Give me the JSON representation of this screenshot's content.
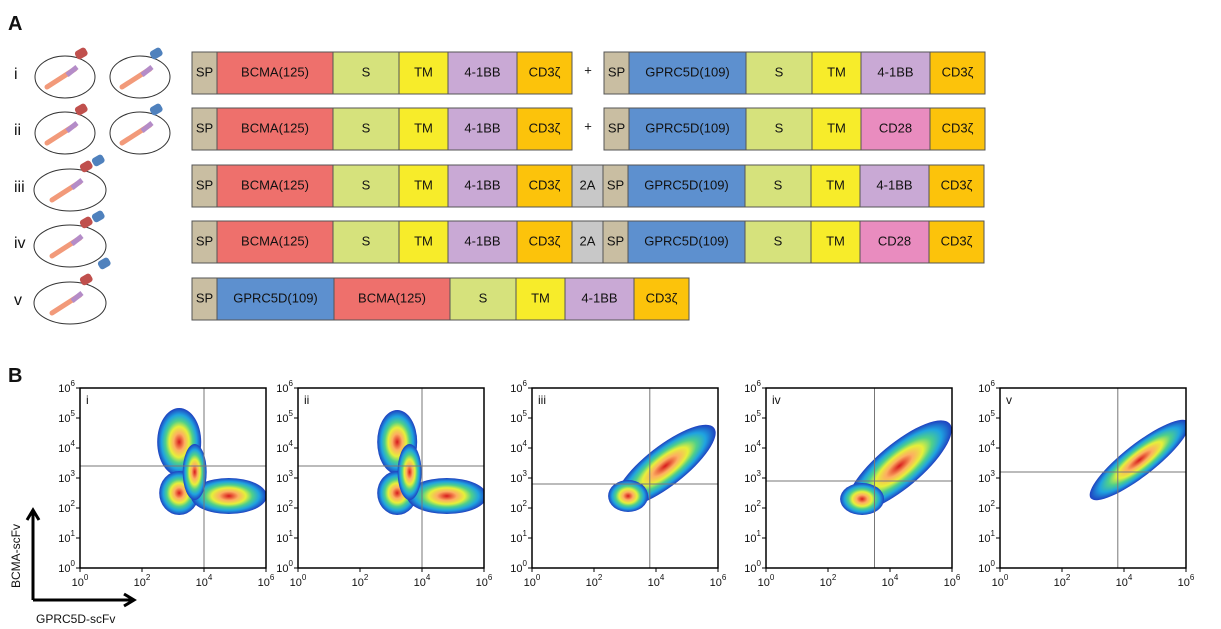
{
  "panel_a": {
    "label": "A",
    "constructs": [
      {
        "label": "i",
        "segments": [
          {
            "text": "SP",
            "color": "#c9bea2"
          },
          {
            "text": "BCMA(125)",
            "color": "#ee706c"
          },
          {
            "text": "S",
            "color": "#d6e27c"
          },
          {
            "text": "TM",
            "color": "#f7ec2a"
          },
          {
            "text": "4-1BB",
            "color": "#c9a9d5"
          },
          {
            "text": "CD3ζ",
            "color": "#fcc30b"
          },
          {
            "text": "+"
          },
          {
            "text": "SP",
            "color": "#c9bea2"
          },
          {
            "text": "GPRC5D(109)",
            "color": "#5d90cf"
          },
          {
            "text": "S",
            "color": "#d6e27c"
          },
          {
            "text": "TM",
            "color": "#f7ec2a"
          },
          {
            "text": "4-1BB",
            "color": "#c9a9d5"
          },
          {
            "text": "CD3ζ",
            "color": "#fcc30b"
          }
        ]
      },
      {
        "label": "ii",
        "segments": [
          {
            "text": "SP",
            "color": "#c9bea2"
          },
          {
            "text": "BCMA(125)",
            "color": "#ee706c"
          },
          {
            "text": "S",
            "color": "#d6e27c"
          },
          {
            "text": "TM",
            "color": "#f7ec2a"
          },
          {
            "text": "4-1BB",
            "color": "#c9a9d5"
          },
          {
            "text": "CD3ζ",
            "color": "#fcc30b"
          },
          {
            "text": "+"
          },
          {
            "text": "SP",
            "color": "#c9bea2"
          },
          {
            "text": "GPRC5D(109)",
            "color": "#5d90cf"
          },
          {
            "text": "S",
            "color": "#d6e27c"
          },
          {
            "text": "TM",
            "color": "#f7ec2a"
          },
          {
            "text": "CD28",
            "color": "#e98cbf"
          },
          {
            "text": "CD3ζ",
            "color": "#fcc30b"
          }
        ]
      },
      {
        "label": "iii",
        "segments": [
          {
            "text": "SP",
            "color": "#c9bea2"
          },
          {
            "text": "BCMA(125)",
            "color": "#ee706c"
          },
          {
            "text": "S",
            "color": "#d6e27c"
          },
          {
            "text": "TM",
            "color": "#f7ec2a"
          },
          {
            "text": "4-1BB",
            "color": "#c9a9d5"
          },
          {
            "text": "CD3ζ",
            "color": "#fcc30b"
          },
          {
            "text": "2A",
            "color": "#c8c8c8"
          },
          {
            "text": "SP",
            "color": "#c9bea2"
          },
          {
            "text": "GPRC5D(109)",
            "color": "#5d90cf"
          },
          {
            "text": "S",
            "color": "#d6e27c"
          },
          {
            "text": "TM",
            "color": "#f7ec2a"
          },
          {
            "text": "4-1BB",
            "color": "#c9a9d5"
          },
          {
            "text": "CD3ζ",
            "color": "#fcc30b"
          }
        ]
      },
      {
        "label": "iv",
        "segments": [
          {
            "text": "SP",
            "color": "#c9bea2"
          },
          {
            "text": "BCMA(125)",
            "color": "#ee706c"
          },
          {
            "text": "S",
            "color": "#d6e27c"
          },
          {
            "text": "TM",
            "color": "#f7ec2a"
          },
          {
            "text": "4-1BB",
            "color": "#c9a9d5"
          },
          {
            "text": "CD3ζ",
            "color": "#fcc30b"
          },
          {
            "text": "2A",
            "color": "#c8c8c8"
          },
          {
            "text": "SP",
            "color": "#c9bea2"
          },
          {
            "text": "GPRC5D(109)",
            "color": "#5d90cf"
          },
          {
            "text": "S",
            "color": "#d6e27c"
          },
          {
            "text": "TM",
            "color": "#f7ec2a"
          },
          {
            "text": "CD28",
            "color": "#e98cbf"
          },
          {
            "text": "CD3ζ",
            "color": "#fcc30b"
          }
        ]
      },
      {
        "label": "v",
        "segments": [
          {
            "text": "SP",
            "color": "#c9bea2"
          },
          {
            "text": "GPRC5D(109)",
            "color": "#5d90cf"
          },
          {
            "text": "BCMA(125)",
            "color": "#ee706c"
          },
          {
            "text": "S",
            "color": "#d6e27c"
          },
          {
            "text": "TM",
            "color": "#f7ec2a"
          },
          {
            "text": "4-1BB",
            "color": "#c9a9d5"
          },
          {
            "text": "CD3ζ",
            "color": "#fcc30b"
          }
        ]
      }
    ]
  },
  "panel_b": {
    "label": "B",
    "x_axis_label": "GPRC5D-scFv",
    "y_axis_label": "BCMA-scFv",
    "tick_base": "10",
    "x_ticks": [
      "0",
      "2",
      "4",
      "6"
    ],
    "y_ticks": [
      "0",
      "1",
      "2",
      "3",
      "4",
      "5",
      "6"
    ],
    "plots": [
      {
        "label": "i"
      },
      {
        "label": "ii"
      },
      {
        "label": "iii"
      },
      {
        "label": "iv"
      },
      {
        "label": "v"
      }
    ]
  }
}
